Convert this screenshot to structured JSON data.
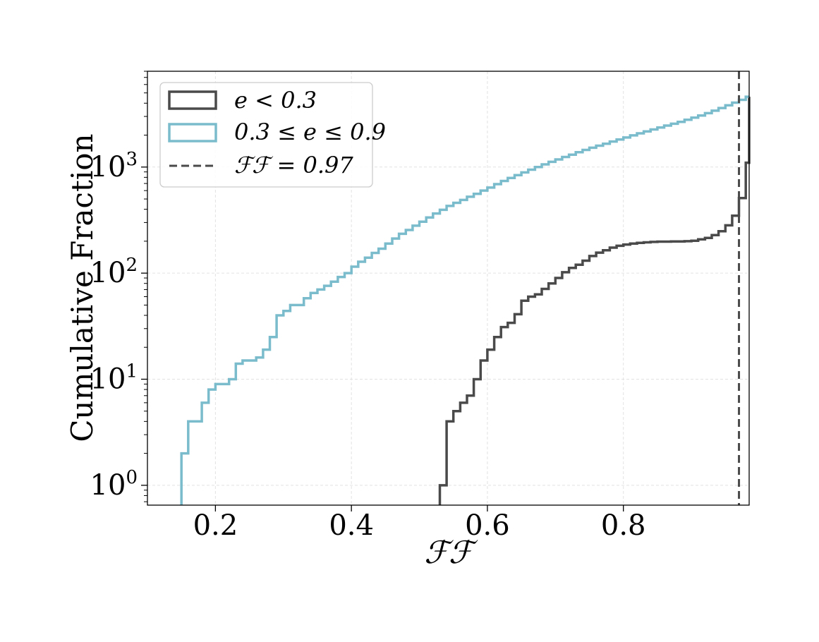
{
  "chart_data": {
    "type": "line",
    "title": "",
    "xlabel": "ℱℱ",
    "ylabel": "Cumulative Fraction",
    "xlim": [
      0.1,
      0.985
    ],
    "ylim": [
      0.65,
      8000
    ],
    "yscale": "log",
    "grid": true,
    "legend_position": "top-left",
    "x_ticks": [
      {
        "value": 0.2,
        "label": "0.2"
      },
      {
        "value": 0.4,
        "label": "0.4"
      },
      {
        "value": 0.6,
        "label": "0.6"
      },
      {
        "value": 0.8,
        "label": "0.8"
      }
    ],
    "y_ticks": [
      {
        "value": 1,
        "base": "10",
        "exp": "0"
      },
      {
        "value": 10,
        "base": "10",
        "exp": "1"
      },
      {
        "value": 100,
        "base": "10",
        "exp": "2"
      },
      {
        "value": 1000,
        "base": "10",
        "exp": "3"
      }
    ],
    "series": [
      {
        "name": "e < 0.3",
        "color": "#4a4a4a",
        "style": "step",
        "points": [
          [
            0.53,
            0.5
          ],
          [
            0.53,
            1
          ],
          [
            0.54,
            4
          ],
          [
            0.55,
            5
          ],
          [
            0.56,
            6
          ],
          [
            0.57,
            7
          ],
          [
            0.58,
            10
          ],
          [
            0.59,
            15
          ],
          [
            0.6,
            19
          ],
          [
            0.61,
            25
          ],
          [
            0.62,
            31
          ],
          [
            0.63,
            34
          ],
          [
            0.64,
            41
          ],
          [
            0.65,
            55
          ],
          [
            0.66,
            60
          ],
          [
            0.67,
            63
          ],
          [
            0.68,
            71
          ],
          [
            0.69,
            80
          ],
          [
            0.7,
            90
          ],
          [
            0.71,
            102
          ],
          [
            0.72,
            112
          ],
          [
            0.73,
            120
          ],
          [
            0.74,
            131
          ],
          [
            0.75,
            145
          ],
          [
            0.76,
            156
          ],
          [
            0.77,
            164
          ],
          [
            0.78,
            174
          ],
          [
            0.79,
            181
          ],
          [
            0.8,
            186
          ],
          [
            0.81,
            190
          ],
          [
            0.82,
            193
          ],
          [
            0.83,
            195
          ],
          [
            0.84,
            197
          ],
          [
            0.85,
            198
          ],
          [
            0.86,
            198
          ],
          [
            0.87,
            199
          ],
          [
            0.88,
            199
          ],
          [
            0.89,
            200
          ],
          [
            0.9,
            202
          ],
          [
            0.91,
            208
          ],
          [
            0.92,
            215
          ],
          [
            0.93,
            228
          ],
          [
            0.94,
            248
          ],
          [
            0.95,
            282
          ],
          [
            0.96,
            348
          ],
          [
            0.97,
            510
          ],
          [
            0.98,
            1100
          ],
          [
            0.99,
            2550
          ],
          [
            1.0,
            4600
          ]
        ]
      },
      {
        "name": "0.3 ≤ e ≤ 0.9",
        "color": "#7bbccc",
        "style": "step",
        "points": [
          [
            0.15,
            0.5
          ],
          [
            0.15,
            2
          ],
          [
            0.16,
            4
          ],
          [
            0.17,
            4
          ],
          [
            0.18,
            6
          ],
          [
            0.19,
            8
          ],
          [
            0.2,
            9
          ],
          [
            0.21,
            9
          ],
          [
            0.22,
            10
          ],
          [
            0.23,
            14
          ],
          [
            0.24,
            15
          ],
          [
            0.25,
            15
          ],
          [
            0.26,
            16
          ],
          [
            0.27,
            19
          ],
          [
            0.28,
            25
          ],
          [
            0.29,
            40
          ],
          [
            0.3,
            44
          ],
          [
            0.31,
            50
          ],
          [
            0.32,
            50
          ],
          [
            0.33,
            58
          ],
          [
            0.34,
            65
          ],
          [
            0.35,
            70
          ],
          [
            0.36,
            76
          ],
          [
            0.37,
            83
          ],
          [
            0.38,
            92
          ],
          [
            0.39,
            100
          ],
          [
            0.4,
            115
          ],
          [
            0.41,
            128
          ],
          [
            0.42,
            140
          ],
          [
            0.43,
            155
          ],
          [
            0.44,
            170
          ],
          [
            0.45,
            190
          ],
          [
            0.46,
            212
          ],
          [
            0.47,
            235
          ],
          [
            0.48,
            255
          ],
          [
            0.49,
            280
          ],
          [
            0.5,
            305
          ],
          [
            0.51,
            335
          ],
          [
            0.52,
            365
          ],
          [
            0.53,
            395
          ],
          [
            0.54,
            430
          ],
          [
            0.55,
            460
          ],
          [
            0.56,
            490
          ],
          [
            0.57,
            525
          ],
          [
            0.58,
            560
          ],
          [
            0.59,
            600
          ],
          [
            0.6,
            640
          ],
          [
            0.61,
            690
          ],
          [
            0.62,
            740
          ],
          [
            0.63,
            790
          ],
          [
            0.64,
            840
          ],
          [
            0.65,
            890
          ],
          [
            0.66,
            945
          ],
          [
            0.67,
            1000
          ],
          [
            0.68,
            1060
          ],
          [
            0.69,
            1120
          ],
          [
            0.7,
            1180
          ],
          [
            0.71,
            1245
          ],
          [
            0.72,
            1310
          ],
          [
            0.73,
            1380
          ],
          [
            0.74,
            1450
          ],
          [
            0.75,
            1520
          ],
          [
            0.76,
            1590
          ],
          [
            0.77,
            1660
          ],
          [
            0.78,
            1740
          ],
          [
            0.79,
            1820
          ],
          [
            0.8,
            1900
          ],
          [
            0.81,
            1990
          ],
          [
            0.82,
            2080
          ],
          [
            0.83,
            2170
          ],
          [
            0.84,
            2260
          ],
          [
            0.85,
            2360
          ],
          [
            0.86,
            2460
          ],
          [
            0.87,
            2560
          ],
          [
            0.88,
            2670
          ],
          [
            0.89,
            2790
          ],
          [
            0.9,
            2920
          ],
          [
            0.91,
            3060
          ],
          [
            0.92,
            3220
          ],
          [
            0.93,
            3400
          ],
          [
            0.94,
            3600
          ],
          [
            0.95,
            3820
          ],
          [
            0.96,
            4050
          ],
          [
            0.97,
            4300
          ],
          [
            0.98,
            4600
          ]
        ]
      }
    ],
    "reference_line": {
      "name": "ℱℱ = 0.97",
      "x": 0.97,
      "color": "#4a4a4a",
      "style": "dashed"
    }
  }
}
